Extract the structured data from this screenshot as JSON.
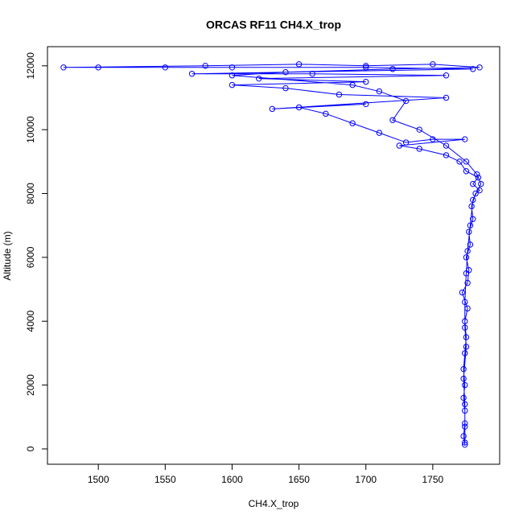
{
  "chart_data": {
    "type": "line",
    "title": "ORCAS RF11 CH4.X_trop",
    "x_label": "CH4.X_trop",
    "y_label": "Altitude (m)",
    "color": "#0000ff",
    "marker": "open-circle",
    "x": [
      1774,
      1773,
      1774,
      1774,
      1773,
      1774,
      1773,
      1774,
      1775,
      1774,
      1776,
      1772,
      1776,
      1777,
      1775,
      1778,
      1777,
      1780,
      1779,
      1782,
      1785,
      1780,
      1784,
      1775,
      1770,
      1760,
      1740,
      1725,
      1774,
      1750,
      1730,
      1710,
      1690,
      1670,
      1650,
      1700,
      1630,
      1760,
      1680,
      1640,
      1600,
      1700,
      1620,
      1760,
      1660,
      1570,
      1780,
      1700,
      1600,
      1550,
      1500,
      1474,
      1580,
      1650,
      1700,
      1750,
      1785,
      1720,
      1640,
      1600,
      1690,
      1710,
      1730,
      1720,
      1740,
      1760,
      1775,
      1783,
      1786,
      1780,
      1778,
      1776,
      1775,
      1774,
      1774,
      1775,
      1773,
      1774,
      1774,
      1774
    ],
    "y": [
      130,
      400,
      800,
      1200,
      1600,
      2000,
      2500,
      3000,
      3500,
      4000,
      4400,
      4900,
      5200,
      5600,
      6000,
      6400,
      6800,
      7200,
      7600,
      8000,
      8100,
      8300,
      8500,
      8700,
      9000,
      9200,
      9400,
      9500,
      9700,
      9700,
      9600,
      9900,
      10200,
      10500,
      10700,
      10800,
      10650,
      11000,
      11100,
      11300,
      11400,
      11500,
      11600,
      11700,
      11750,
      11750,
      11900,
      11950,
      11950,
      11950,
      11950,
      11950,
      12000,
      12050,
      12000,
      12050,
      11950,
      11900,
      11800,
      11700,
      11400,
      11200,
      10900,
      10300,
      10000,
      9500,
      9000,
      8600,
      8300,
      7800,
      7000,
      6200,
      5500,
      4600,
      3800,
      3200,
      2200,
      1400,
      700,
      200
    ],
    "xlim": [
      1462,
      1800
    ],
    "ylim": [
      -480,
      12600
    ],
    "xticks": [
      1500,
      1550,
      1600,
      1650,
      1700,
      1750
    ],
    "yticks": [
      0,
      2000,
      4000,
      6000,
      8000,
      10000,
      12000
    ]
  }
}
